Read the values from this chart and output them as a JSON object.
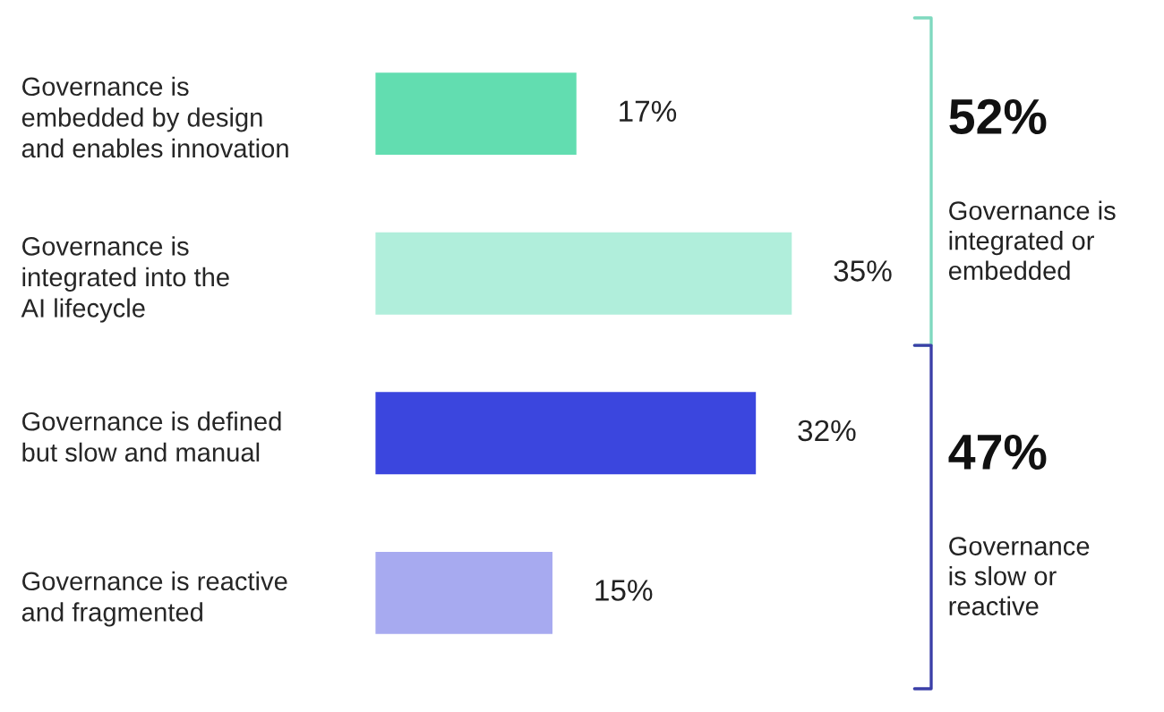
{
  "chart_data": {
    "type": "bar",
    "orientation": "horizontal",
    "categories": [
      "Governance is\nembedded by design\nand enables innovation",
      "Governance is\nintegrated into the\nAI lifecycle",
      "Governance is defined\nbut slow and manual",
      "Governance is reactive\nand fragmented"
    ],
    "values": [
      17,
      35,
      32,
      15
    ],
    "colors": [
      "#62ddb0",
      "#b0eedb",
      "#3b46de",
      "#a7aaf0"
    ],
    "value_labels": [
      "17%",
      "35%",
      "32%",
      "15%"
    ],
    "annotations": [
      "52%",
      "Governance is\nintegrated or\nembedded",
      "47%",
      "Governance\nis slow or\nreactive"
    ],
    "tick_labels": "y",
    "grid": false,
    "legend": false
  }
}
